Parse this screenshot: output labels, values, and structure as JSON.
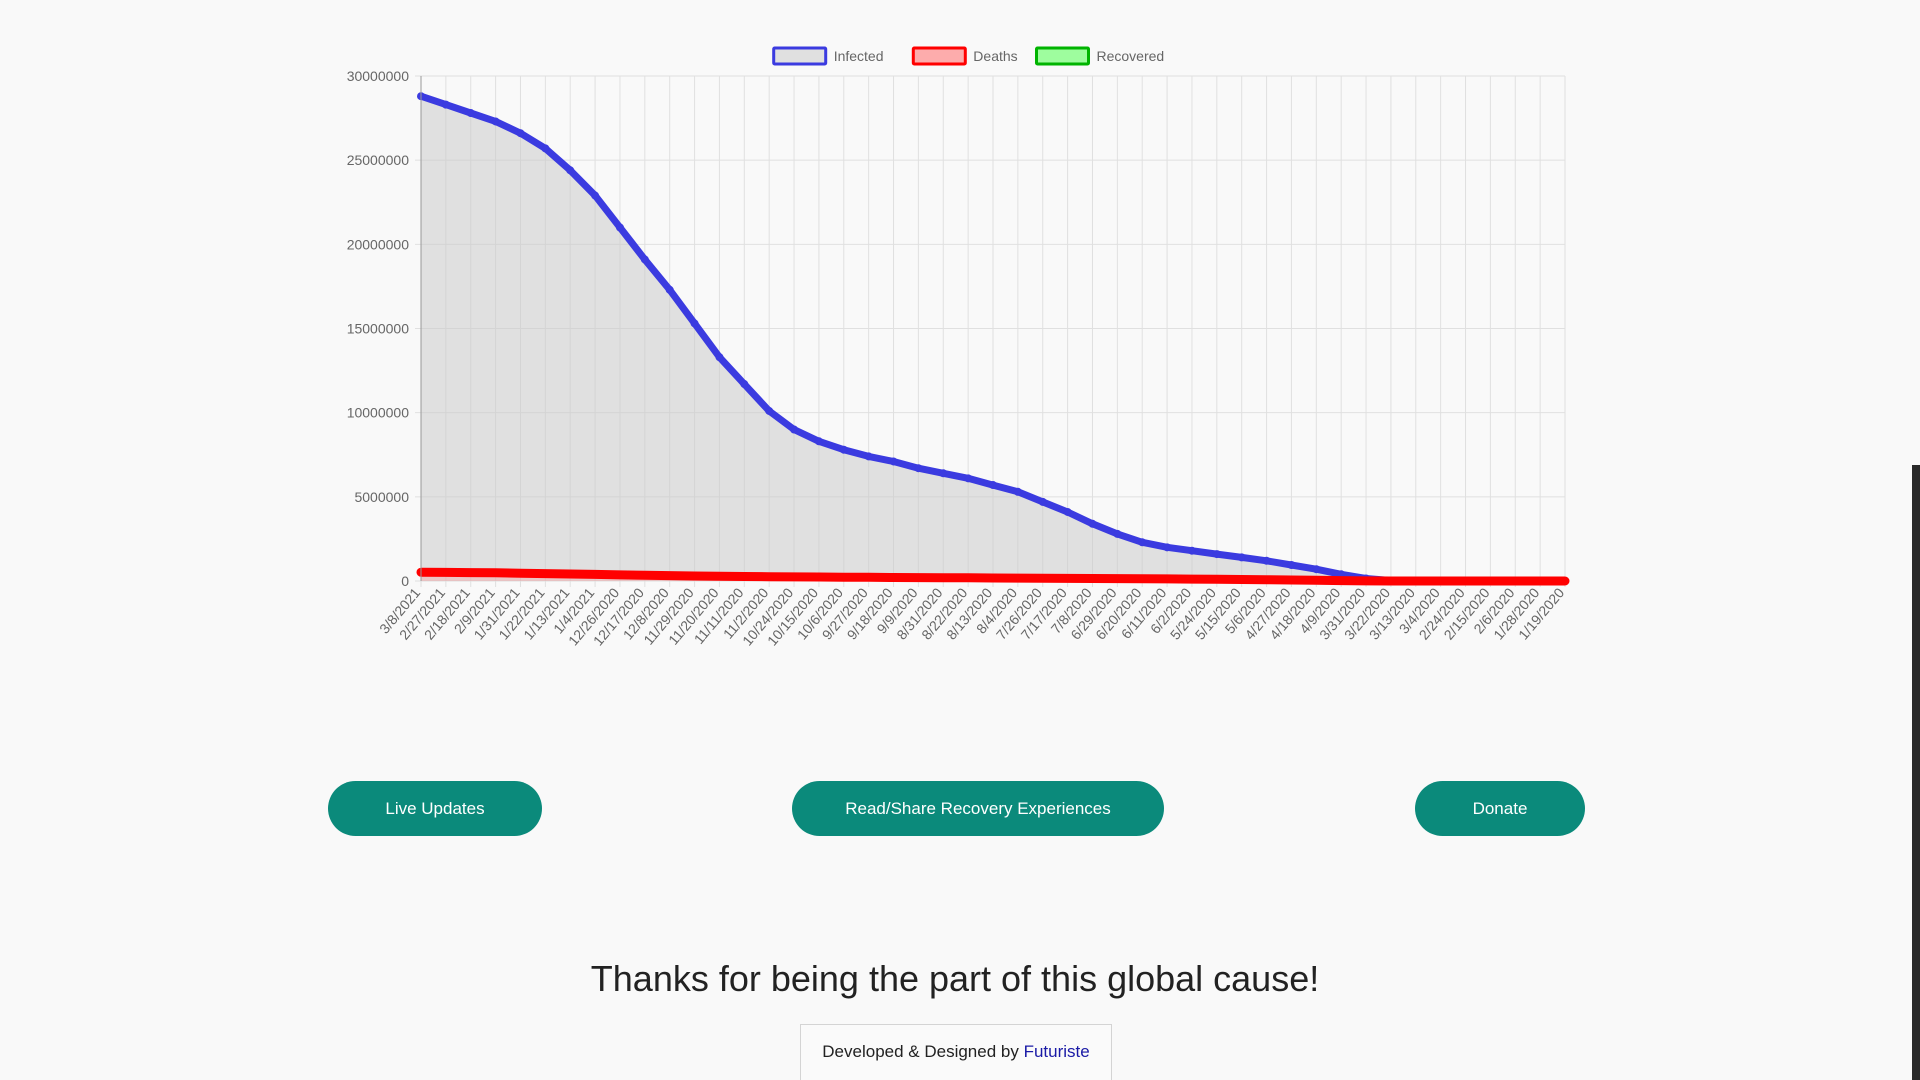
{
  "chart_data": {
    "type": "line",
    "legend_position": "top",
    "grid": true,
    "ylim": [
      0,
      30000000
    ],
    "yticks": [
      0,
      5000000,
      10000000,
      15000000,
      20000000,
      25000000,
      30000000
    ],
    "x_labels": [
      "3/8/2021",
      "2/27/2021",
      "2/18/2021",
      "2/9/2021",
      "1/31/2021",
      "1/22/2021",
      "1/13/2021",
      "1/4/2021",
      "12/26/2020",
      "12/17/2020",
      "12/8/2020",
      "11/29/2020",
      "11/20/2020",
      "11/11/2020",
      "11/2/2020",
      "10/24/2020",
      "10/15/2020",
      "10/6/2020",
      "9/27/2020",
      "9/18/2020",
      "9/9/2020",
      "8/31/2020",
      "8/22/2020",
      "8/13/2020",
      "8/4/2020",
      "7/26/2020",
      "7/17/2020",
      "7/8/2020",
      "6/29/2020",
      "6/20/2020",
      "6/11/2020",
      "6/2/2020",
      "5/24/2020",
      "5/15/2020",
      "5/6/2020",
      "4/27/2020",
      "4/18/2020",
      "4/9/2020",
      "3/31/2020",
      "3/22/2020",
      "3/13/2020",
      "3/4/2020",
      "2/24/2020",
      "2/15/2020",
      "2/6/2020",
      "1/28/2020",
      "1/19/2020"
    ],
    "series": [
      {
        "name": "Infected",
        "color": "#3b3be0",
        "fill": "rgba(200,200,200,0.5)",
        "values": [
          28800000,
          28300000,
          27800000,
          27300000,
          26600000,
          25700000,
          24400000,
          22900000,
          21000000,
          19100000,
          17300000,
          15300000,
          13300000,
          11700000,
          10100000,
          9000000,
          8300000,
          7800000,
          7400000,
          7100000,
          6700000,
          6400000,
          6100000,
          5700000,
          5300000,
          4700000,
          4100000,
          3400000,
          2800000,
          2300000,
          2000000,
          1800000,
          1600000,
          1400000,
          1200000,
          950000,
          700000,
          400000,
          150000,
          30000,
          10000,
          5000,
          3000,
          2000,
          1000,
          500,
          0
        ]
      },
      {
        "name": "Deaths",
        "color": "#ff0000",
        "fill": "rgba(255,120,120,0.6)",
        "values": [
          520000,
          510000,
          500000,
          485000,
          465000,
          440000,
          415000,
          390000,
          365000,
          340000,
          320000,
          300000,
          285000,
          270000,
          257000,
          245000,
          235000,
          226000,
          217000,
          210000,
          202000,
          195000,
          188000,
          180000,
          172000,
          163000,
          155000,
          147000,
          140000,
          132000,
          123000,
          113000,
          103000,
          90000,
          75000,
          58000,
          40000,
          22000,
          8000,
          2000,
          1000,
          300,
          100,
          50,
          20,
          10,
          0
        ]
      },
      {
        "name": "Recovered",
        "color": "#00b400",
        "fill": "rgba(120,255,120,0.7)",
        "values": []
      }
    ]
  },
  "buttons": {
    "live_updates": "Live Updates",
    "read_share": "Read/Share Recovery Experiences",
    "donate": "Donate"
  },
  "footer": {
    "thanks": "Thanks for being the part of this global cause!",
    "developed_by": "Developed & Designed by ",
    "brand": "Futuriste"
  }
}
